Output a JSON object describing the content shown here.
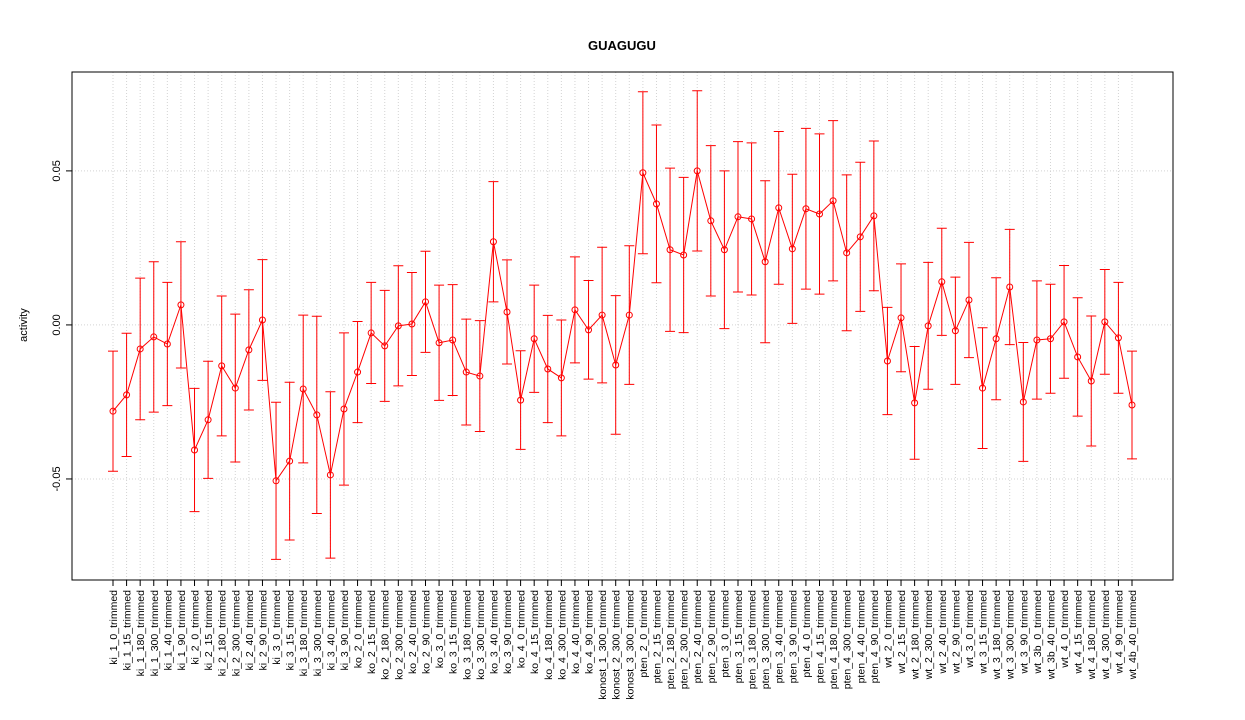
{
  "chart_data": {
    "type": "line",
    "title": "GUAGUGU",
    "y_label": "activity",
    "categories": [
      "ki_1_0_trimmed",
      "ki_1_15_trimmed",
      "ki_1_180_trimmed",
      "ki_1_300_trimmed",
      "ki_1_40_trimmed",
      "ki_1_90_trimmed",
      "ki_2_0_trimmed",
      "ki_2_15_trimmed",
      "ki_2_180_trimmed",
      "ki_2_300_trimmed",
      "ki_2_40_trimmed",
      "ki_2_90_trimmed",
      "ki_3_0_trimmed",
      "ki_3_15_trimmed",
      "ki_3_180_trimmed",
      "ki_3_300_trimmed",
      "ki_3_40_trimmed",
      "ki_3_90_trimmed",
      "ko_2_0_trimmed",
      "ko_2_15_trimmed",
      "ko_2_180_trimmed",
      "ko_2_300_trimmed",
      "ko_2_40_trimmed",
      "ko_2_90_trimmed",
      "ko_3_0_trimmed",
      "ko_3_15_trimmed",
      "ko_3_180_trimmed",
      "ko_3_300_trimmed",
      "ko_3_40_trimmed",
      "ko_3_90_trimmed",
      "ko_4_0_trimmed",
      "ko_4_15_trimmed",
      "ko_4_180_trimmed",
      "ko_4_300_trimmed",
      "ko_4_40_trimmed",
      "ko_4_90_trimmed",
      "konost_1_300_trimmed",
      "konost_2_300_trimmed",
      "konost_3_300_trimmed",
      "pten_2_0_trimmed",
      "pten_2_15_trimmed",
      "pten_2_180_trimmed",
      "pten_2_300_trimmed",
      "pten_2_40_trimmed",
      "pten_2_90_trimmed",
      "pten_3_0_trimmed",
      "pten_3_15_trimmed",
      "pten_3_180_trimmed",
      "pten_3_300_trimmed",
      "pten_3_40_trimmed",
      "pten_3_90_trimmed",
      "pten_4_0_trimmed",
      "pten_4_15_trimmed",
      "pten_4_180_trimmed",
      "pten_4_300_trimmed",
      "pten_4_40_trimmed",
      "pten_4_90_trimmed",
      "wt_2_0_trimmed",
      "wt_2_15_trimmed",
      "wt_2_180_trimmed",
      "wt_2_300_trimmed",
      "wt_2_40_trimmed",
      "wt_2_90_trimmed",
      "wt_3_0_trimmed",
      "wt_3_15_trimmed",
      "wt_3_180_trimmed",
      "wt_3_300_trimmed",
      "wt_3_90_trimmed",
      "wt_3b_0_trimmed",
      "wt_3b_40_trimmed",
      "wt_4_0_trimmed",
      "wt_4_15_trimmed",
      "wt_4_180_trimmed",
      "wt_4_300_trimmed",
      "wt_4_90_trimmed",
      "wt_4b_40_trimmed"
    ],
    "series": [
      {
        "color": "#ff0000",
        "values": [
          -0.028,
          -0.0227,
          -0.0078,
          -0.0039,
          -0.0062,
          0.0065,
          -0.0406,
          -0.0308,
          -0.0133,
          -0.0205,
          -0.0081,
          0.0016,
          -0.0506,
          -0.0442,
          -0.0208,
          -0.0292,
          -0.0487,
          -0.0273,
          -0.0153,
          -0.0026,
          -0.0068,
          -0.0003,
          0.0003,
          0.0075,
          -0.0058,
          -0.0049,
          -0.0153,
          -0.0166,
          0.027,
          0.0042,
          -0.0244,
          -0.0045,
          -0.0143,
          -0.0172,
          0.0049,
          -0.0016,
          0.0032,
          -0.013,
          0.0032,
          0.0494,
          0.0393,
          0.0244,
          0.0227,
          0.05,
          0.0338,
          0.0244,
          0.0351,
          0.0344,
          0.0205,
          0.038,
          0.0247,
          0.0377,
          0.036,
          0.0403,
          0.0234,
          0.0286,
          0.0354,
          -0.0117,
          0.0023,
          -0.0253,
          -0.0003,
          0.014,
          -0.0019,
          0.0081,
          -0.0205,
          -0.0045,
          0.0123,
          -0.025,
          -0.0049,
          -0.0045,
          0.001,
          -0.0104,
          -0.0182,
          0.001,
          -0.0042,
          -0.026
        ],
        "errors": [
          0.0195,
          0.02,
          0.023,
          0.0244,
          0.02,
          0.0205,
          0.02,
          0.019,
          0.0227,
          0.024,
          0.0195,
          0.0196,
          0.0255,
          0.0256,
          0.024,
          0.032,
          0.027,
          0.0247,
          0.0164,
          0.0164,
          0.018,
          0.0195,
          0.0167,
          0.0164,
          0.0187,
          0.018,
          0.0172,
          0.018,
          0.0195,
          0.0169,
          0.016,
          0.0174,
          0.0174,
          0.0188,
          0.0172,
          0.016,
          0.022,
          0.0225,
          0.0225,
          0.0263,
          0.0256,
          0.0265,
          0.0252,
          0.026,
          0.0244,
          0.0256,
          0.0244,
          0.0247,
          0.0263,
          0.0248,
          0.0242,
          0.0261,
          0.026,
          0.026,
          0.0253,
          0.0242,
          0.0243,
          0.0174,
          0.0175,
          0.0183,
          0.0206,
          0.0174,
          0.0174,
          0.0187,
          0.0196,
          0.0198,
          0.0187,
          0.0193,
          0.0192,
          0.0177,
          0.0183,
          0.0192,
          0.0211,
          0.017,
          0.018,
          0.0175
        ]
      }
    ],
    "ylim": [
      -0.0828,
      0.0821
    ],
    "yticks": [
      -0.05,
      {
        "value": 0,
        "label": "0.00"
      },
      0.05
    ],
    "grid": true
  }
}
